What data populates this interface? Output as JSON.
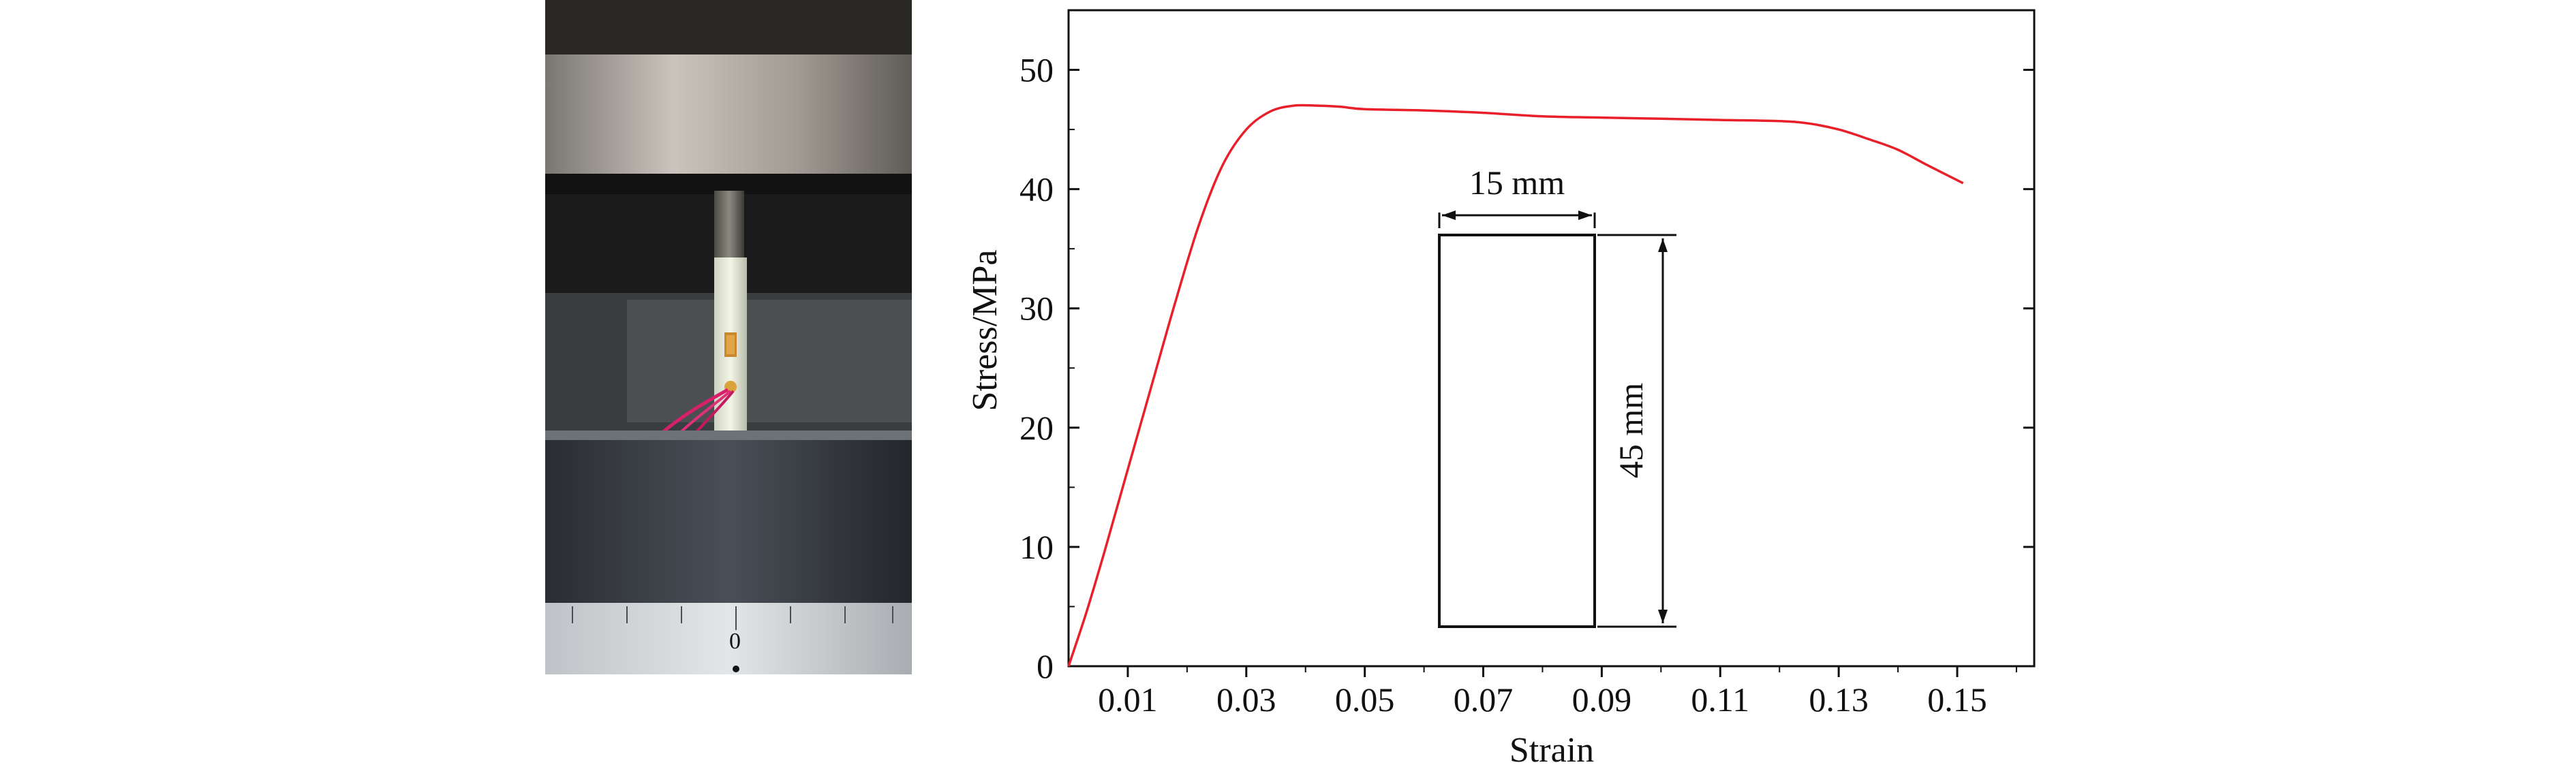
{
  "photo": {
    "description_icon": "compression-test-photo",
    "dial_label": "0"
  },
  "chart_data": {
    "type": "line",
    "title": "",
    "xlabel": "Strain",
    "ylabel": "Stress/MPa",
    "xlim": [
      0,
      0.163
    ],
    "ylim": [
      0,
      55
    ],
    "x_ticks": [
      0.01,
      0.03,
      0.05,
      0.07,
      0.09,
      0.11,
      0.13,
      0.15
    ],
    "x_tick_labels": [
      "0.01",
      "0.03",
      "0.05",
      "0.07",
      "0.09",
      "0.11",
      "0.13",
      "0.15"
    ],
    "y_ticks": [
      0,
      10,
      20,
      30,
      40,
      50
    ],
    "y_tick_labels": [
      "0",
      "10",
      "20",
      "30",
      "40",
      "50"
    ],
    "grid": false,
    "legend": "none",
    "series": [
      {
        "color": "#e8202a",
        "x": [
          0.0,
          0.003,
          0.006,
          0.01,
          0.014,
          0.018,
          0.022,
          0.026,
          0.03,
          0.034,
          0.038,
          0.042,
          0.046,
          0.05,
          0.06,
          0.07,
          0.08,
          0.09,
          0.1,
          0.11,
          0.12,
          0.125,
          0.13,
          0.135,
          0.14,
          0.145,
          0.151
        ],
        "y": [
          0.0,
          4.5,
          9.5,
          16.5,
          23.5,
          30.5,
          37.0,
          42.0,
          45.0,
          46.5,
          47.0,
          47.0,
          46.9,
          46.7,
          46.6,
          46.4,
          46.1,
          46.0,
          45.9,
          45.8,
          45.7,
          45.5,
          45.0,
          44.2,
          43.3,
          42.0,
          40.5
        ]
      }
    ],
    "inset": {
      "width_label": "15 mm",
      "height_label": "45 mm"
    }
  }
}
